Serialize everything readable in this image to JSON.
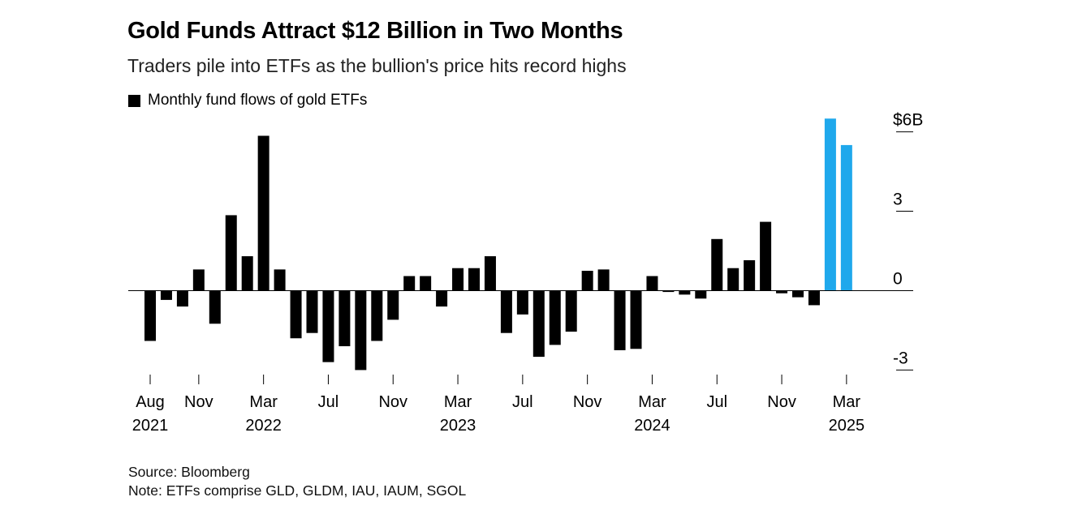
{
  "chart_data": {
    "type": "bar",
    "title": "Gold Funds Attract $12 Billion in Two Months",
    "subtitle": "Traders pile into ETFs as the bullion's price hits record highs",
    "legend": [
      {
        "label": "Monthly fund flows of gold ETFs",
        "color": "#000000"
      }
    ],
    "legend_position": "top-left",
    "y_axis_position": "right",
    "grid": false,
    "ylim": [
      -3.6,
      6.6
    ],
    "yticks": [
      {
        "value": 6,
        "label": "$6B"
      },
      {
        "value": 3,
        "label": "3"
      },
      {
        "value": 0,
        "label": "0"
      },
      {
        "value": -3,
        "label": "-3"
      }
    ],
    "categories": [
      "Aug 2021",
      "Sep 2021",
      "Oct 2021",
      "Nov 2021",
      "Dec 2021",
      "Jan 2022",
      "Feb 2022",
      "Mar 2022",
      "Apr 2022",
      "May 2022",
      "Jun 2022",
      "Jul 2022",
      "Aug 2022",
      "Sep 2022",
      "Oct 2022",
      "Nov 2022",
      "Dec 2022",
      "Jan 2023",
      "Feb 2023",
      "Mar 2023",
      "Apr 2023",
      "May 2023",
      "Jun 2023",
      "Jul 2023",
      "Aug 2023",
      "Sep 2023",
      "Oct 2023",
      "Nov 2023",
      "Dec 2023",
      "Jan 2024",
      "Feb 2024",
      "Mar 2024",
      "Apr 2024",
      "May 2024",
      "Jun 2024",
      "Jul 2024",
      "Aug 2024",
      "Sep 2024",
      "Oct 2024",
      "Nov 2024",
      "Dec 2024",
      "Jan 2025",
      "Feb 2025",
      "Mar 2025"
    ],
    "values": [
      -1.9,
      -0.35,
      -0.6,
      0.8,
      -1.25,
      2.85,
      1.3,
      5.85,
      0.8,
      -1.8,
      -1.6,
      -2.7,
      -2.1,
      -3.0,
      -1.9,
      -1.1,
      0.55,
      0.55,
      -0.6,
      0.85,
      0.85,
      1.3,
      -1.6,
      -0.9,
      -2.5,
      -2.05,
      -1.55,
      0.75,
      0.8,
      -2.25,
      -2.2,
      0.55,
      -0.05,
      -0.15,
      -0.3,
      1.95,
      0.85,
      1.15,
      2.6,
      -0.1,
      -0.25,
      -0.55,
      6.5,
      5.5
    ],
    "highlight_color": "#1fa8ec",
    "bar_color": "#000000",
    "highlight_categories": [
      "Feb 2025",
      "Mar 2025"
    ],
    "xticks": [
      {
        "category": "Aug 2021",
        "label": "Aug",
        "year": "2021"
      },
      {
        "category": "Nov 2021",
        "label": "Nov",
        "year": ""
      },
      {
        "category": "Mar 2022",
        "label": "Mar",
        "year": "2022"
      },
      {
        "category": "Jul 2022",
        "label": "Jul",
        "year": ""
      },
      {
        "category": "Nov 2022",
        "label": "Nov",
        "year": ""
      },
      {
        "category": "Mar 2023",
        "label": "Mar",
        "year": "2023"
      },
      {
        "category": "Jul 2023",
        "label": "Jul",
        "year": ""
      },
      {
        "category": "Nov 2023",
        "label": "Nov",
        "year": ""
      },
      {
        "category": "Mar 2024",
        "label": "Mar",
        "year": "2024"
      },
      {
        "category": "Jul 2024",
        "label": "Jul",
        "year": ""
      },
      {
        "category": "Nov 2024",
        "label": "Nov",
        "year": ""
      },
      {
        "category": "Mar 2025",
        "label": "Mar",
        "year": "2025"
      }
    ]
  },
  "footer": {
    "source": "Source: Bloomberg",
    "note": "Note: ETFs comprise GLD, GLDM, IAU, IAUM, SGOL"
  }
}
